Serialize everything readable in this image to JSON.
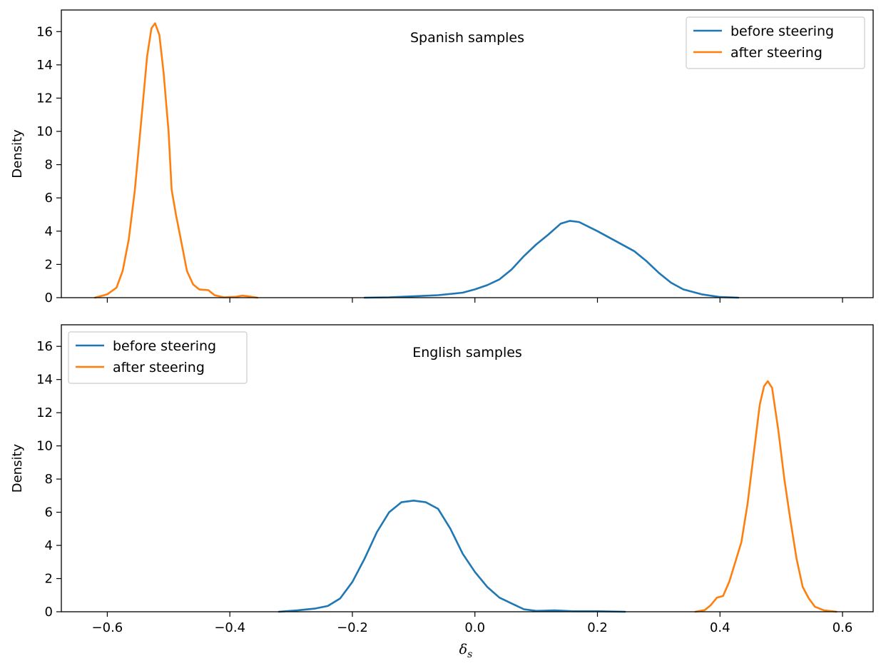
{
  "chart_data": [
    {
      "type": "line",
      "title": "Spanish samples",
      "xlabel": "",
      "ylabel": "Density",
      "xlim": [
        -0.675,
        0.65
      ],
      "ylim": [
        0,
        17.3
      ],
      "xticks": [
        -0.6,
        -0.4,
        -0.2,
        0.0,
        0.2,
        0.4,
        0.6
      ],
      "show_xtick_labels": false,
      "yticks": [
        0,
        2,
        4,
        6,
        8,
        10,
        12,
        14,
        16
      ],
      "ytick_labels": [
        "0",
        "2",
        "4",
        "6",
        "8",
        "10",
        "12",
        "14",
        "16"
      ],
      "grid": false,
      "legend_position": "upper-right",
      "series": [
        {
          "name": "before steering",
          "color": "#1f77b4",
          "points": [
            [
              -0.18,
              0.0
            ],
            [
              -0.14,
              0.02
            ],
            [
              -0.1,
              0.08
            ],
            [
              -0.06,
              0.15
            ],
            [
              -0.02,
              0.3
            ],
            [
              0.0,
              0.5
            ],
            [
              0.02,
              0.75
            ],
            [
              0.04,
              1.1
            ],
            [
              0.06,
              1.7
            ],
            [
              0.08,
              2.5
            ],
            [
              0.1,
              3.2
            ],
            [
              0.12,
              3.8
            ],
            [
              0.14,
              4.45
            ],
            [
              0.155,
              4.62
            ],
            [
              0.17,
              4.55
            ],
            [
              0.2,
              4.0
            ],
            [
              0.23,
              3.4
            ],
            [
              0.26,
              2.8
            ],
            [
              0.28,
              2.2
            ],
            [
              0.3,
              1.5
            ],
            [
              0.32,
              0.9
            ],
            [
              0.34,
              0.5
            ],
            [
              0.37,
              0.2
            ],
            [
              0.4,
              0.04
            ],
            [
              0.43,
              0.0
            ]
          ]
        },
        {
          "name": "after steering",
          "color": "#ff7f0e",
          "points": [
            [
              -0.62,
              0.0
            ],
            [
              -0.6,
              0.2
            ],
            [
              -0.585,
              0.6
            ],
            [
              -0.575,
              1.6
            ],
            [
              -0.565,
              3.5
            ],
            [
              -0.555,
              6.5
            ],
            [
              -0.545,
              10.5
            ],
            [
              -0.535,
              14.5
            ],
            [
              -0.528,
              16.2
            ],
            [
              -0.522,
              16.5
            ],
            [
              -0.515,
              15.8
            ],
            [
              -0.508,
              13.5
            ],
            [
              -0.5,
              10.0
            ],
            [
              -0.495,
              6.5
            ],
            [
              -0.488,
              5.0
            ],
            [
              -0.48,
              3.5
            ],
            [
              -0.47,
              1.6
            ],
            [
              -0.46,
              0.8
            ],
            [
              -0.45,
              0.5
            ],
            [
              -0.435,
              0.45
            ],
            [
              -0.425,
              0.15
            ],
            [
              -0.41,
              0.02
            ],
            [
              -0.39,
              0.05
            ],
            [
              -0.38,
              0.12
            ],
            [
              -0.37,
              0.08
            ],
            [
              -0.355,
              0.0
            ]
          ]
        }
      ]
    },
    {
      "type": "line",
      "title": "English samples",
      "xlabel": "δ",
      "xlabel_sub": "s",
      "ylabel": "Density",
      "xlim": [
        -0.675,
        0.65
      ],
      "ylim": [
        0,
        17.3
      ],
      "xticks": [
        -0.6,
        -0.4,
        -0.2,
        0.0,
        0.2,
        0.4,
        0.6
      ],
      "xtick_labels": [
        "−0.6",
        "−0.4",
        "−0.2",
        "0.0",
        "0.2",
        "0.4",
        "0.6"
      ],
      "show_xtick_labels": true,
      "yticks": [
        0,
        2,
        4,
        6,
        8,
        10,
        12,
        14,
        16
      ],
      "ytick_labels": [
        "0",
        "2",
        "4",
        "6",
        "8",
        "10",
        "12",
        "14",
        "16"
      ],
      "grid": false,
      "legend_position": "upper-left",
      "series": [
        {
          "name": "before steering",
          "color": "#1f77b4",
          "points": [
            [
              -0.32,
              0.0
            ],
            [
              -0.29,
              0.08
            ],
            [
              -0.26,
              0.2
            ],
            [
              -0.24,
              0.35
            ],
            [
              -0.22,
              0.8
            ],
            [
              -0.2,
              1.8
            ],
            [
              -0.18,
              3.2
            ],
            [
              -0.16,
              4.8
            ],
            [
              -0.14,
              6.0
            ],
            [
              -0.12,
              6.6
            ],
            [
              -0.1,
              6.7
            ],
            [
              -0.08,
              6.6
            ],
            [
              -0.06,
              6.2
            ],
            [
              -0.04,
              5.0
            ],
            [
              -0.02,
              3.5
            ],
            [
              0.0,
              2.4
            ],
            [
              0.02,
              1.5
            ],
            [
              0.04,
              0.85
            ],
            [
              0.06,
              0.5
            ],
            [
              0.08,
              0.15
            ],
            [
              0.1,
              0.05
            ],
            [
              0.13,
              0.08
            ],
            [
              0.16,
              0.03
            ],
            [
              0.2,
              0.03
            ],
            [
              0.245,
              0.0
            ]
          ]
        },
        {
          "name": "after steering",
          "color": "#ff7f0e",
          "points": [
            [
              0.36,
              0.0
            ],
            [
              0.375,
              0.1
            ],
            [
              0.385,
              0.4
            ],
            [
              0.395,
              0.85
            ],
            [
              0.405,
              0.95
            ],
            [
              0.415,
              1.8
            ],
            [
              0.425,
              3.0
            ],
            [
              0.435,
              4.2
            ],
            [
              0.445,
              6.5
            ],
            [
              0.455,
              9.5
            ],
            [
              0.465,
              12.5
            ],
            [
              0.472,
              13.6
            ],
            [
              0.478,
              13.9
            ],
            [
              0.485,
              13.5
            ],
            [
              0.495,
              11.0
            ],
            [
              0.505,
              8.0
            ],
            [
              0.515,
              5.5
            ],
            [
              0.525,
              3.2
            ],
            [
              0.535,
              1.5
            ],
            [
              0.545,
              0.8
            ],
            [
              0.555,
              0.3
            ],
            [
              0.57,
              0.08
            ],
            [
              0.59,
              0.0
            ]
          ]
        }
      ]
    }
  ]
}
